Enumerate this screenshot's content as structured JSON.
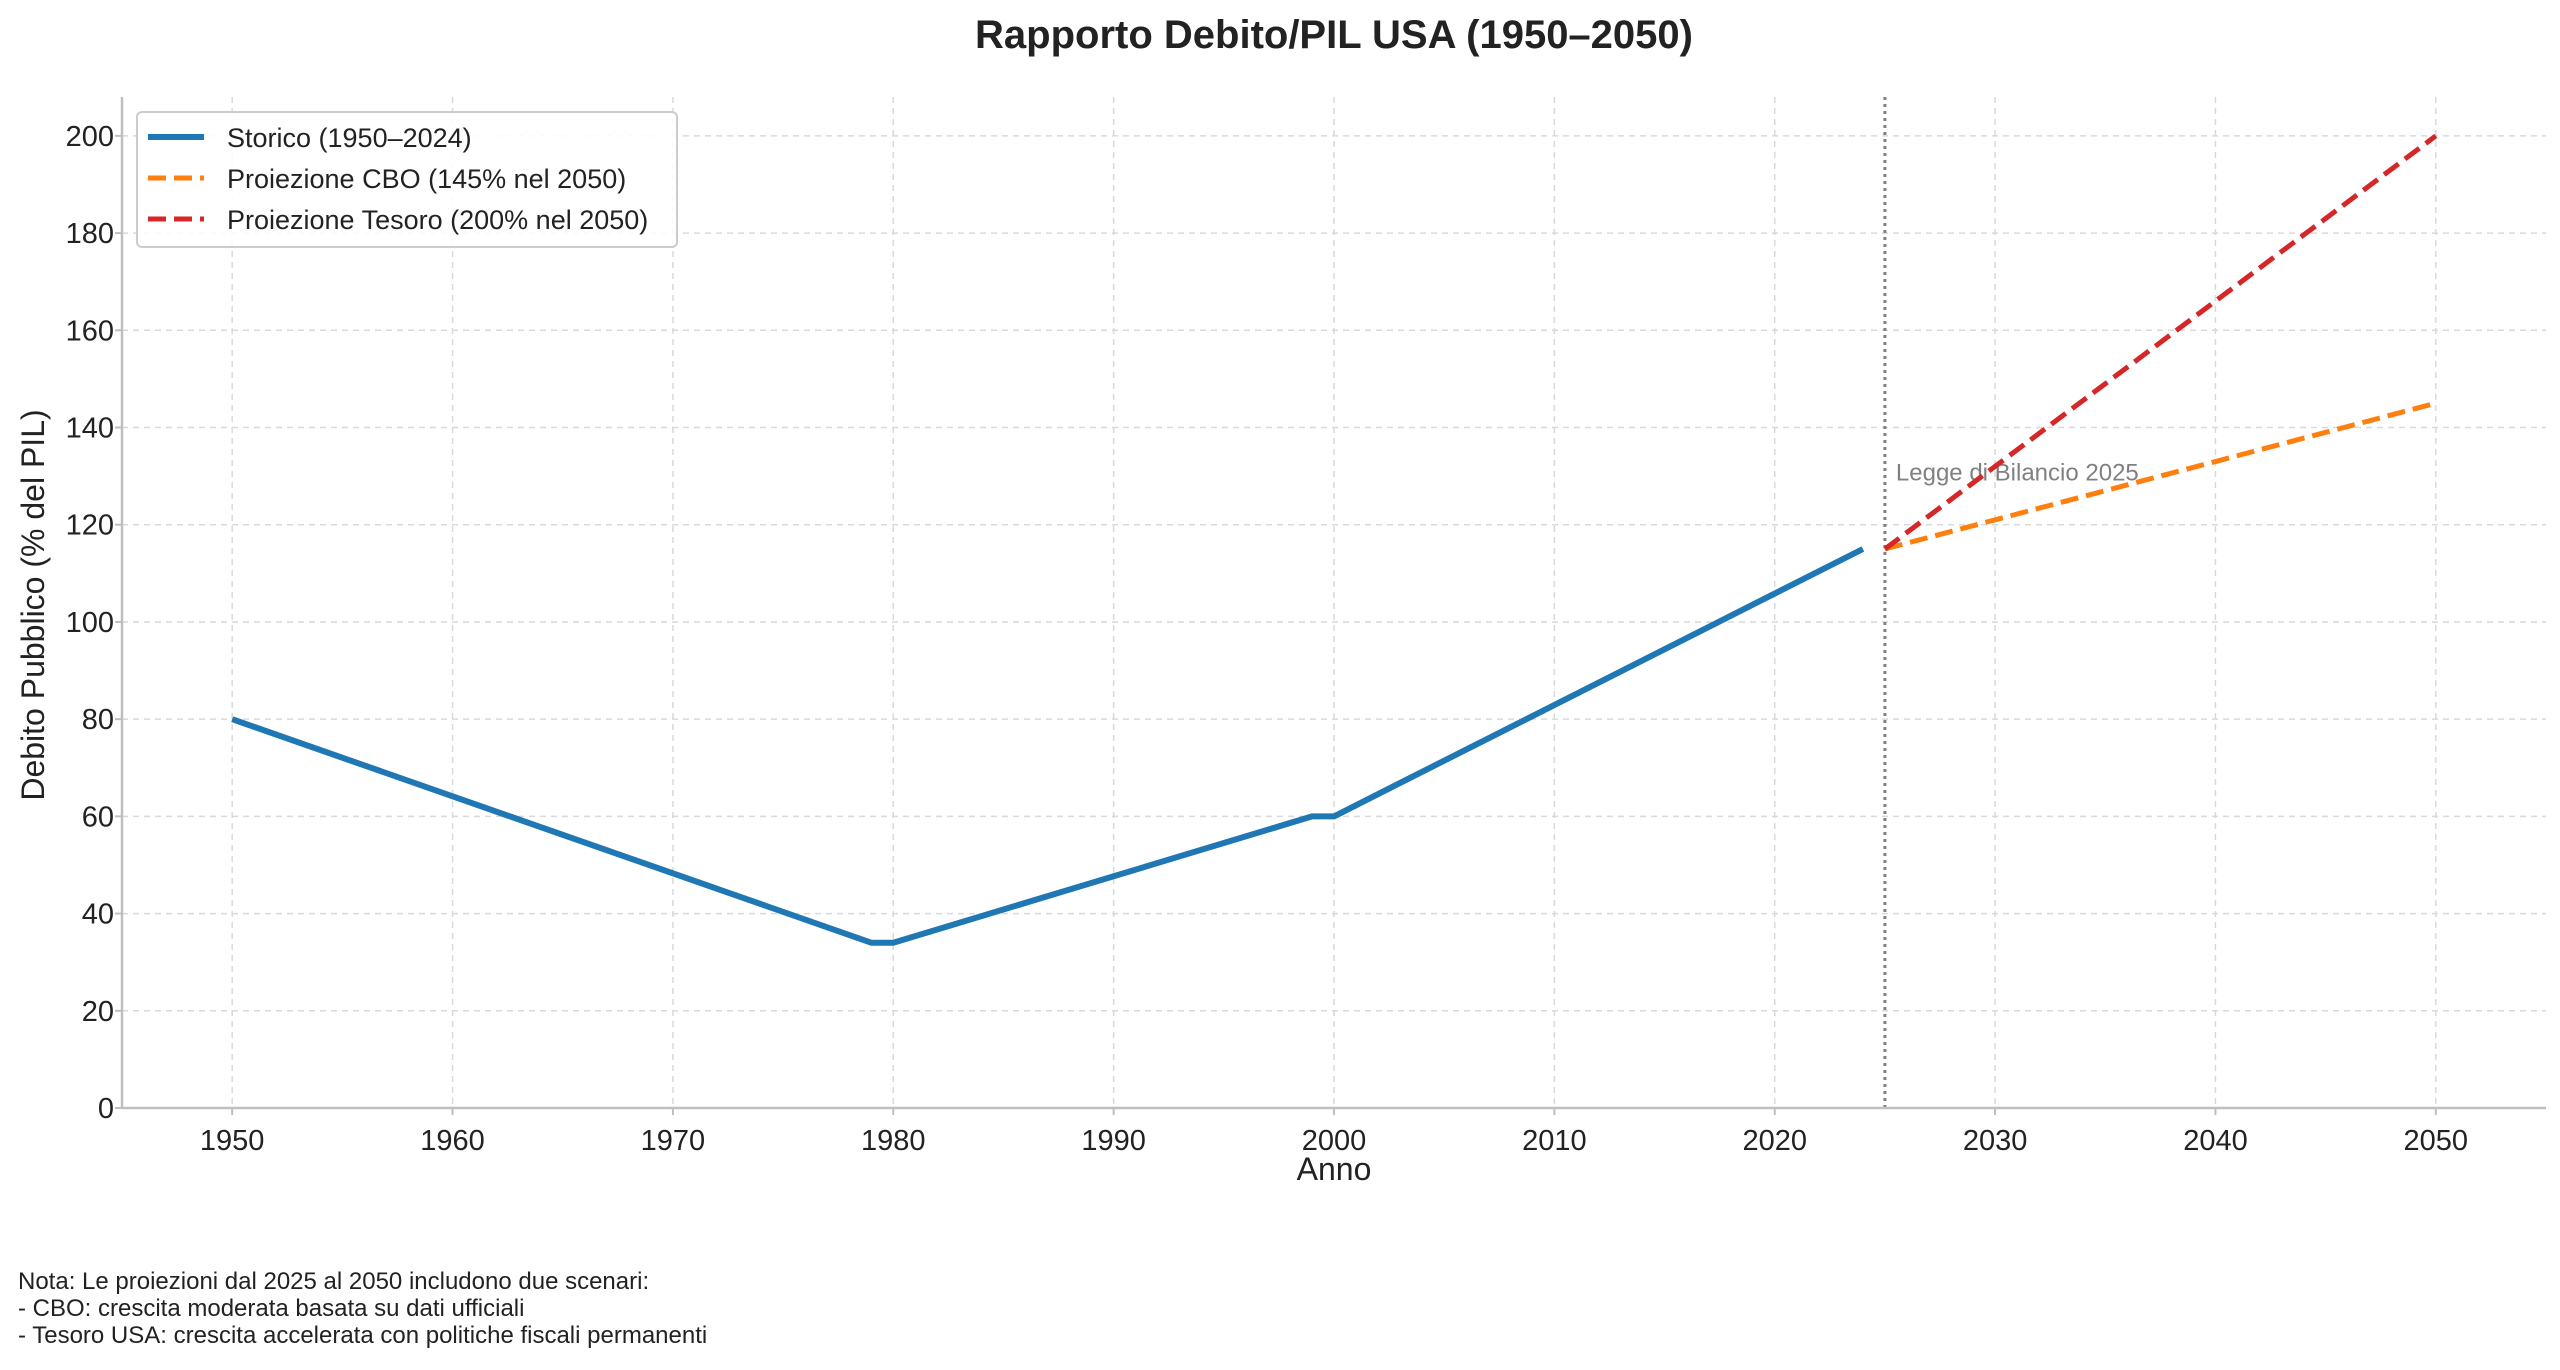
{
  "chart_data": {
    "type": "line",
    "title": "Rapporto Debito/PIL USA (1950–2050)",
    "xlabel": "Anno",
    "ylabel": "Debito Pubblico (% del PIL)",
    "xlim": [
      1945,
      2055
    ],
    "ylim": [
      0,
      208
    ],
    "xticks": [
      1950,
      1960,
      1970,
      1980,
      1990,
      2000,
      2010,
      2020,
      2030,
      2040,
      2050
    ],
    "yticks": [
      0,
      20,
      40,
      60,
      80,
      100,
      120,
      140,
      160,
      180,
      200
    ],
    "grid": true,
    "legend_position": "top-left",
    "series": [
      {
        "name": "Storico (1950–2024)",
        "style": "solid",
        "color": "#1f77b4",
        "x": [
          1950,
          1979,
          1980,
          1999,
          2000,
          2024
        ],
        "y": [
          80,
          34,
          34,
          60,
          60,
          115
        ]
      },
      {
        "name": "Proiezione CBO (145% nel 2050)",
        "style": "dashed",
        "color": "#ff7f0e",
        "x": [
          2025,
          2050
        ],
        "y": [
          115,
          145
        ]
      },
      {
        "name": "Proiezione Tesoro (200% nel 2050)",
        "style": "dashed",
        "color": "#d62728",
        "x": [
          2025,
          2050
        ],
        "y": [
          115,
          200
        ]
      }
    ],
    "annotations": [
      {
        "type": "vline",
        "x": 2025,
        "style": "dotted",
        "color": "#808080",
        "label": "Legge di Bilancio 2025",
        "label_y": 131
      }
    ]
  },
  "note": {
    "lines": [
      "Nota: Le proiezioni dal 2025 al 2050 includono due scenari:",
      "- CBO: crescita moderata basata su dati ufficiali",
      "- Tesoro USA: crescita accelerata con politiche fiscali permanenti"
    ]
  }
}
